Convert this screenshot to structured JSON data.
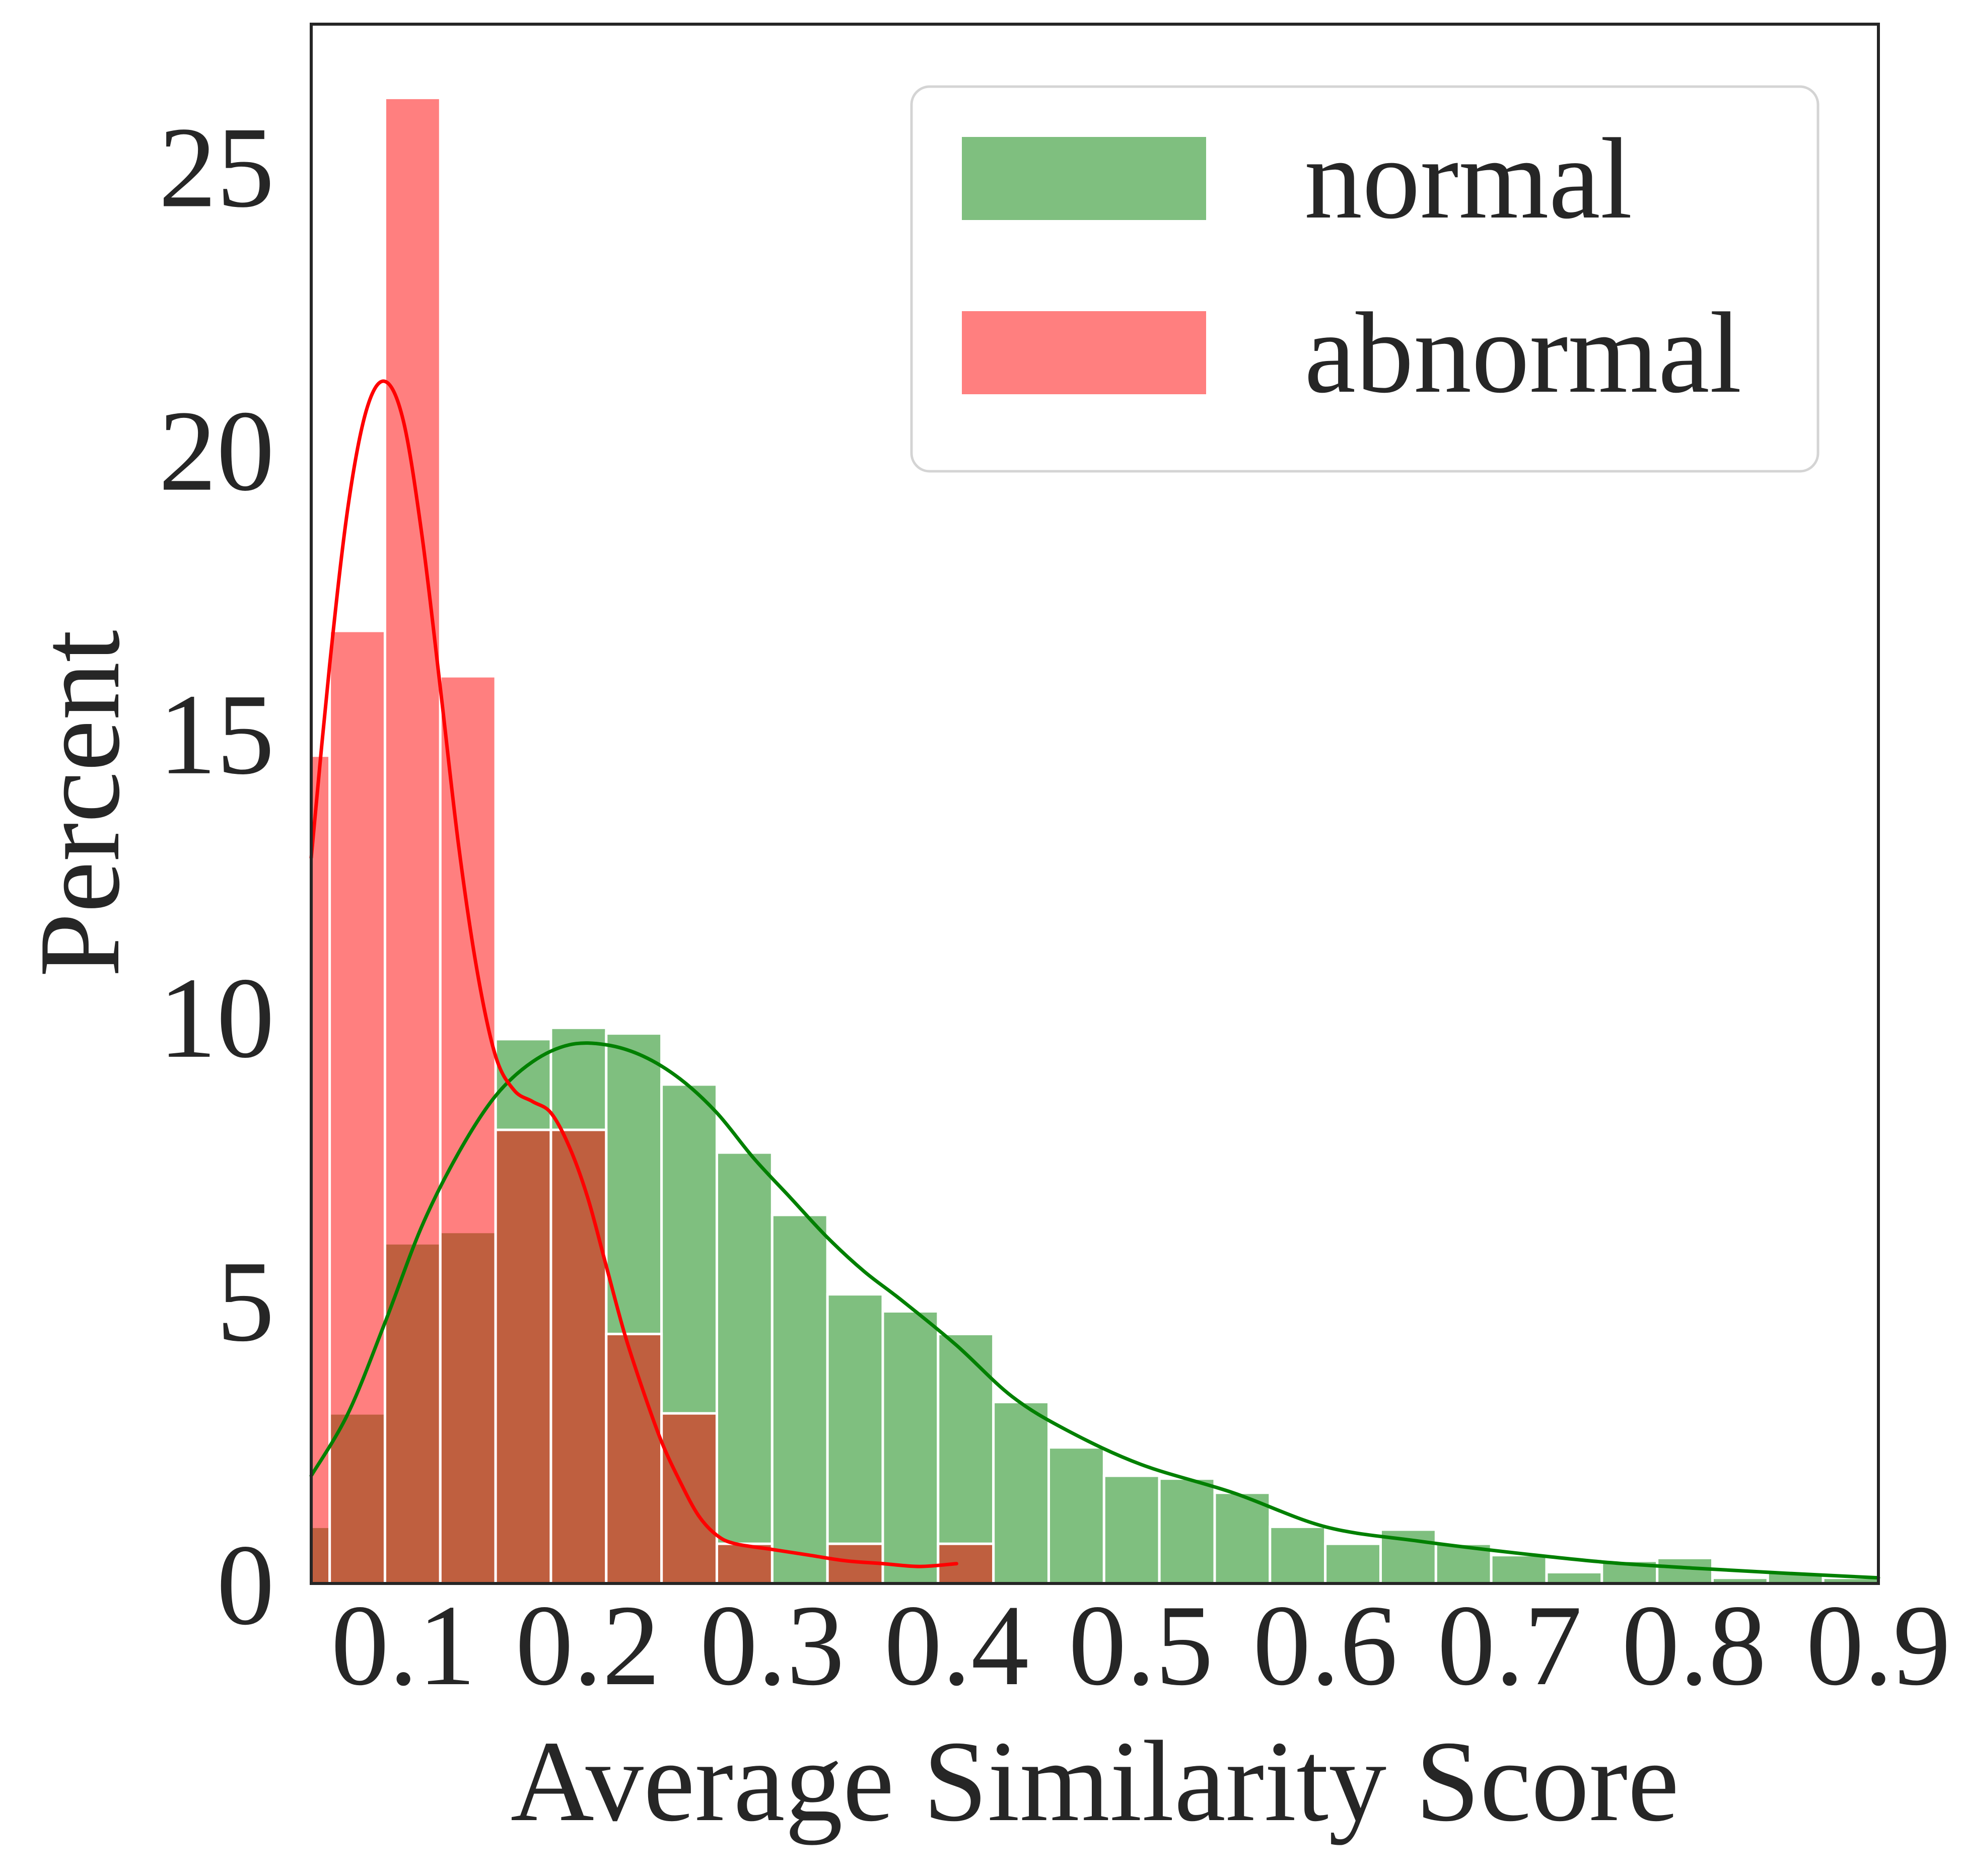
{
  "chart_data": {
    "type": "histogram",
    "title": "",
    "xlabel": "Average Similarity Score",
    "ylabel": "Percent",
    "xlim": [
      0.05,
      0.9
    ],
    "ylim": [
      0,
      27.5
    ],
    "xticks": [
      0.1,
      0.2,
      0.3,
      0.4,
      0.5,
      0.6,
      0.7,
      0.8,
      0.9
    ],
    "xtick_labels": [
      "0.1",
      "0.2",
      "0.3",
      "0.4",
      "0.5",
      "0.6",
      "0.7",
      "0.8",
      "0.9"
    ],
    "yticks": [
      0,
      5,
      10,
      15,
      20,
      25
    ],
    "ytick_labels": [
      "0",
      "5",
      "10",
      "15",
      "20",
      "25"
    ],
    "bin_width": 0.03,
    "grid": false,
    "legend_position": "top-right",
    "series": [
      {
        "name": "normal",
        "color": "#008000",
        "bins": [
          {
            "start": 0.05,
            "end": 0.06,
            "value": 1.0
          },
          {
            "start": 0.06,
            "end": 0.09,
            "value": 3.0
          },
          {
            "start": 0.09,
            "end": 0.12,
            "value": 6.0
          },
          {
            "start": 0.12,
            "end": 0.15,
            "value": 6.2
          },
          {
            "start": 0.15,
            "end": 0.18,
            "value": 9.6
          },
          {
            "start": 0.18,
            "end": 0.21,
            "value": 9.8
          },
          {
            "start": 0.21,
            "end": 0.24,
            "value": 9.7
          },
          {
            "start": 0.24,
            "end": 0.27,
            "value": 8.8
          },
          {
            "start": 0.27,
            "end": 0.3,
            "value": 7.6
          },
          {
            "start": 0.3,
            "end": 0.33,
            "value": 6.5
          },
          {
            "start": 0.33,
            "end": 0.36,
            "value": 5.1
          },
          {
            "start": 0.36,
            "end": 0.39,
            "value": 4.8
          },
          {
            "start": 0.39,
            "end": 0.42,
            "value": 4.4
          },
          {
            "start": 0.42,
            "end": 0.45,
            "value": 3.2
          },
          {
            "start": 0.45,
            "end": 0.48,
            "value": 2.4
          },
          {
            "start": 0.48,
            "end": 0.51,
            "value": 1.9
          },
          {
            "start": 0.51,
            "end": 0.54,
            "value": 1.85
          },
          {
            "start": 0.54,
            "end": 0.57,
            "value": 1.6
          },
          {
            "start": 0.57,
            "end": 0.6,
            "value": 1.0
          },
          {
            "start": 0.6,
            "end": 0.63,
            "value": 0.7
          },
          {
            "start": 0.63,
            "end": 0.66,
            "value": 0.95
          },
          {
            "start": 0.66,
            "end": 0.69,
            "value": 0.7
          },
          {
            "start": 0.69,
            "end": 0.72,
            "value": 0.5
          },
          {
            "start": 0.72,
            "end": 0.75,
            "value": 0.2
          },
          {
            "start": 0.75,
            "end": 0.78,
            "value": 0.4
          },
          {
            "start": 0.78,
            "end": 0.81,
            "value": 0.45
          },
          {
            "start": 0.81,
            "end": 0.84,
            "value": 0.1
          },
          {
            "start": 0.84,
            "end": 0.87,
            "value": 0.2
          },
          {
            "start": 0.87,
            "end": 0.9,
            "value": 0.1
          }
        ],
        "kde": {
          "x": [
            0.05,
            0.07,
            0.09,
            0.11,
            0.13,
            0.15,
            0.17,
            0.19,
            0.21,
            0.23,
            0.25,
            0.27,
            0.29,
            0.31,
            0.33,
            0.35,
            0.37,
            0.4,
            0.43,
            0.46,
            0.5,
            0.55,
            0.6,
            0.65,
            0.7,
            0.75,
            0.8,
            0.85,
            0.9
          ],
          "y": [
            1.9,
            3.0,
            4.6,
            6.3,
            7.6,
            8.6,
            9.2,
            9.5,
            9.5,
            9.3,
            8.9,
            8.3,
            7.5,
            6.8,
            6.1,
            5.5,
            5.0,
            4.2,
            3.3,
            2.7,
            2.1,
            1.6,
            1.0,
            0.75,
            0.55,
            0.38,
            0.27,
            0.18,
            0.1
          ]
        }
      },
      {
        "name": "abnormal",
        "color": "#ff0000",
        "bins": [
          {
            "start": 0.05,
            "end": 0.06,
            "value": 14.6
          },
          {
            "start": 0.06,
            "end": 0.09,
            "value": 16.8
          },
          {
            "start": 0.09,
            "end": 0.12,
            "value": 26.2
          },
          {
            "start": 0.12,
            "end": 0.15,
            "value": 16.0
          },
          {
            "start": 0.15,
            "end": 0.18,
            "value": 8.0
          },
          {
            "start": 0.18,
            "end": 0.21,
            "value": 8.0
          },
          {
            "start": 0.21,
            "end": 0.24,
            "value": 4.4
          },
          {
            "start": 0.24,
            "end": 0.27,
            "value": 3.0
          },
          {
            "start": 0.27,
            "end": 0.3,
            "value": 0.7
          },
          {
            "start": 0.3,
            "end": 0.33,
            "value": 0.0
          },
          {
            "start": 0.33,
            "end": 0.36,
            "value": 0.7
          },
          {
            "start": 0.36,
            "end": 0.39,
            "value": 0.0
          },
          {
            "start": 0.39,
            "end": 0.42,
            "value": 0.7
          }
        ],
        "kde": {
          "x": [
            0.05,
            0.06,
            0.07,
            0.08,
            0.09,
            0.1,
            0.11,
            0.12,
            0.13,
            0.14,
            0.15,
            0.16,
            0.17,
            0.18,
            0.19,
            0.2,
            0.21,
            0.22,
            0.23,
            0.24,
            0.25,
            0.26,
            0.27,
            0.28,
            0.3,
            0.32,
            0.34,
            0.36,
            0.38,
            0.4
          ],
          "y": [
            12.8,
            16.2,
            19.0,
            20.7,
            21.2,
            20.5,
            18.5,
            15.8,
            13.0,
            10.8,
            9.3,
            8.7,
            8.5,
            8.3,
            7.7,
            6.8,
            5.6,
            4.4,
            3.4,
            2.5,
            1.8,
            1.2,
            0.85,
            0.7,
            0.6,
            0.5,
            0.4,
            0.35,
            0.3,
            0.35
          ]
        }
      }
    ]
  }
}
